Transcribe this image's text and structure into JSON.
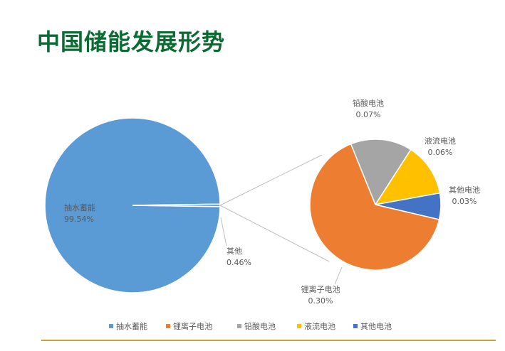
{
  "slide": {
    "title": "中国储能发展形势"
  },
  "colors": {
    "title": "#0b6b33",
    "rule": "#c9a23a",
    "connector": "#bfbfbf",
    "label": "#595959"
  },
  "chart_data": {
    "type": "bar-of-pie",
    "title": "",
    "primary": {
      "slices": [
        {
          "name": "抽水蓄能",
          "value": 99.54,
          "label": "99.54%",
          "color": "#5b9bd5"
        },
        {
          "name": "其他",
          "value": 0.46,
          "label": "0.46%",
          "color": "#5b9bd5"
        }
      ]
    },
    "secondary": {
      "slices": [
        {
          "name": "锂离子电池",
          "value": 0.3,
          "label": "0.30%",
          "color": "#ed7d31"
        },
        {
          "name": "铅酸电池",
          "value": 0.07,
          "label": "0.07%",
          "color": "#a5a5a5"
        },
        {
          "name": "液流电池",
          "value": 0.06,
          "label": "0.06%",
          "color": "#ffc000"
        },
        {
          "name": "其他电池",
          "value": 0.03,
          "label": "0.03%",
          "color": "#4472c4"
        }
      ]
    },
    "legend": {
      "position": "bottom",
      "items": [
        {
          "name": "抽水蓄能",
          "color": "#5b9bd5"
        },
        {
          "name": "锂离子电池",
          "color": "#ed7d31"
        },
        {
          "name": "铅酸电池",
          "color": "#a5a5a5"
        },
        {
          "name": "液流电池",
          "color": "#ffc000"
        },
        {
          "name": "其他电池",
          "color": "#4472c4"
        }
      ]
    }
  }
}
